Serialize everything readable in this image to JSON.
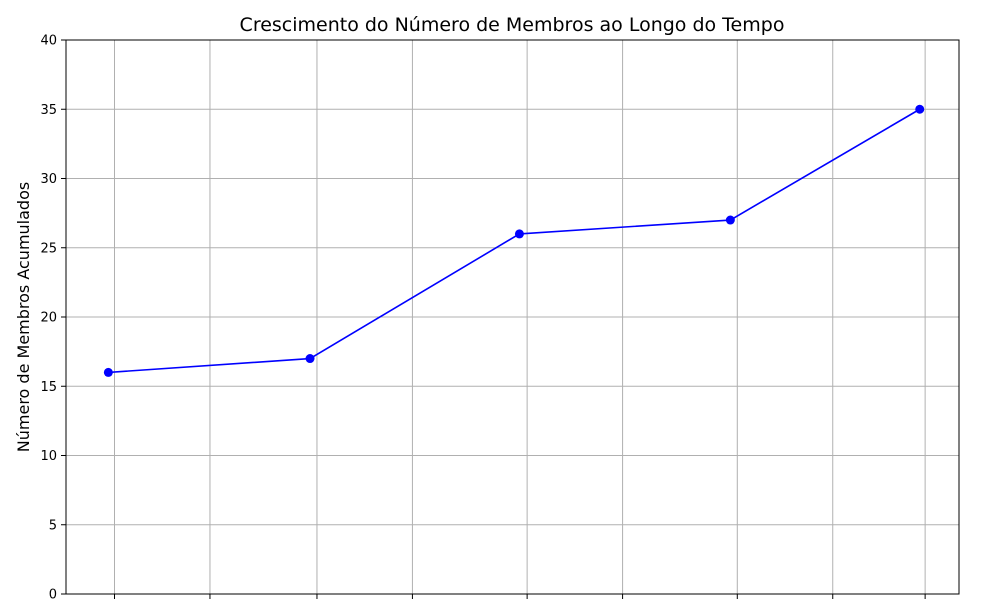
{
  "chart_data": {
    "type": "line",
    "title": "Crescimento do Número de Membros ao Longo do Tempo",
    "xlabel": "",
    "ylabel": "Número de Membros Acumulados",
    "x": [
      0.05,
      2.67,
      5.39,
      8.13,
      10.59
    ],
    "y": [
      16,
      17,
      26,
      27,
      35
    ],
    "xlim": [
      -0.5,
      11.1
    ],
    "ylim": [
      0,
      40
    ],
    "x_ticks": [
      0.13,
      1.37,
      2.76,
      4.0,
      5.49,
      6.73,
      8.22,
      9.46,
      10.66
    ],
    "y_ticks": [
      0,
      5,
      10,
      15,
      20,
      25,
      30,
      35,
      40
    ],
    "grid": true,
    "series_color": "#0000ff",
    "grid_color": "#b0b0b0"
  }
}
